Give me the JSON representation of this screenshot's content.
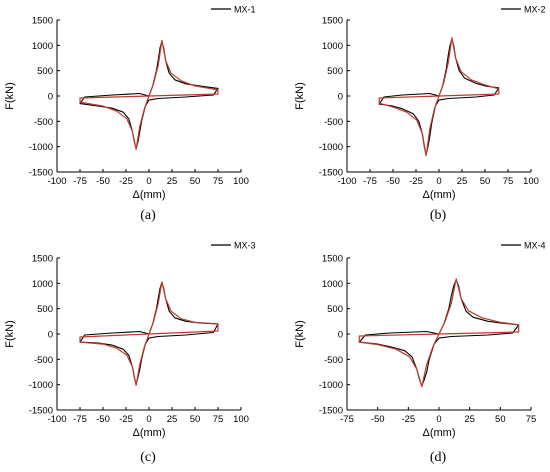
{
  "chart_data": [
    {
      "type": "line",
      "panel_label": "(a)",
      "xlabel": "Δ(mm)",
      "ylabel": "F(kN)",
      "xlim": [
        -100,
        100
      ],
      "ylim": [
        -1500,
        1500
      ],
      "xticks": [
        -100,
        -75,
        -50,
        -25,
        0,
        25,
        50,
        75,
        100
      ],
      "yticks": [
        -1500,
        -1000,
        -500,
        0,
        500,
        1000,
        1500
      ],
      "legend": "top-right",
      "series": [
        {
          "name": "MX-1",
          "color": "#000000",
          "role": "hysteresis",
          "x": [
            0,
            4,
            8,
            10,
            12,
            14,
            16,
            18,
            22,
            28,
            40,
            55,
            75,
            70,
            40,
            10,
            0,
            -4,
            -8,
            -10,
            -12,
            -14,
            -16,
            -18,
            -22,
            -28,
            -40,
            -55,
            -75,
            -70,
            -40,
            -10,
            0
          ],
          "y": [
            0,
            200,
            500,
            700,
            950,
            1080,
            950,
            700,
            450,
            320,
            240,
            200,
            150,
            20,
            -20,
            -50,
            -80,
            -200,
            -500,
            -700,
            -900,
            -1040,
            -900,
            -700,
            -450,
            -320,
            -240,
            -200,
            -150,
            -20,
            20,
            50,
            0
          ]
        },
        {
          "name": "",
          "color": "#c0392b",
          "role": "skeleton",
          "x": [
            0,
            5,
            10,
            14,
            18,
            24,
            35,
            50,
            75,
            75,
            0,
            -75,
            -75,
            -50,
            -35,
            -24,
            -18,
            -14,
            -10,
            -5,
            0
          ],
          "y": [
            0,
            250,
            600,
            1100,
            700,
            450,
            300,
            200,
            120,
            40,
            0,
            -40,
            -120,
            -200,
            -300,
            -450,
            -700,
            -1050,
            -600,
            -250,
            0
          ]
        }
      ]
    },
    {
      "type": "line",
      "panel_label": "(b)",
      "xlabel": "Δ(mm)",
      "ylabel": "F(kN)",
      "xlim": [
        -100,
        100
      ],
      "ylim": [
        -1500,
        1500
      ],
      "xticks": [
        -100,
        -75,
        -50,
        -25,
        0,
        25,
        50,
        75,
        100
      ],
      "yticks": [
        -1500,
        -1000,
        -500,
        0,
        500,
        1000,
        1500
      ],
      "legend": "top-right",
      "series": [
        {
          "name": "MX-2",
          "color": "#000000",
          "role": "hysteresis",
          "x": [
            0,
            4,
            8,
            10,
            12,
            14,
            16,
            18,
            22,
            28,
            40,
            50,
            65,
            60,
            40,
            10,
            0,
            -4,
            -8,
            -10,
            -12,
            -14,
            -16,
            -18,
            -22,
            -28,
            -40,
            -50,
            -65,
            -60,
            -40,
            -10,
            0
          ],
          "y": [
            0,
            200,
            550,
            800,
            1000,
            1120,
            1000,
            750,
            500,
            350,
            250,
            200,
            160,
            20,
            -20,
            -50,
            -80,
            -200,
            -550,
            -800,
            -1000,
            -1150,
            -1000,
            -750,
            -500,
            -350,
            -250,
            -200,
            -160,
            -20,
            20,
            50,
            0
          ]
        },
        {
          "name": "",
          "color": "#c0392b",
          "role": "skeleton",
          "x": [
            0,
            5,
            10,
            14,
            18,
            24,
            35,
            50,
            65,
            65,
            0,
            -65,
            -65,
            -50,
            -35,
            -24,
            -18,
            -14,
            -10,
            -5,
            0
          ],
          "y": [
            0,
            250,
            650,
            1150,
            750,
            480,
            320,
            220,
            140,
            40,
            0,
            -40,
            -140,
            -220,
            -320,
            -480,
            -750,
            -1180,
            -650,
            -250,
            0
          ]
        }
      ]
    },
    {
      "type": "line",
      "panel_label": "(c)",
      "xlabel": "Δ(mm)",
      "ylabel": "F(kN)",
      "xlim": [
        -100,
        100
      ],
      "ylim": [
        -1500,
        1500
      ],
      "xticks": [
        -100,
        -75,
        -50,
        -25,
        0,
        25,
        50,
        75,
        100
      ],
      "yticks": [
        -1500,
        -1000,
        -500,
        0,
        500,
        1000,
        1500
      ],
      "legend": "top-right",
      "series": [
        {
          "name": "MX-3",
          "color": "#000000",
          "role": "hysteresis",
          "x": [
            0,
            4,
            8,
            10,
            12,
            14,
            16,
            18,
            22,
            28,
            40,
            55,
            75,
            70,
            40,
            10,
            0,
            -4,
            -8,
            -10,
            -12,
            -14,
            -16,
            -18,
            -22,
            -28,
            -40,
            -55,
            -75,
            -70,
            -40,
            -10,
            0
          ],
          "y": [
            0,
            200,
            500,
            700,
            900,
            1020,
            900,
            700,
            450,
            320,
            250,
            220,
            200,
            30,
            -20,
            -50,
            -80,
            -200,
            -500,
            -700,
            -850,
            -1000,
            -850,
            -650,
            -420,
            -300,
            -220,
            -180,
            -160,
            -20,
            20,
            50,
            0
          ]
        },
        {
          "name": "",
          "color": "#c0392b",
          "role": "skeleton",
          "x": [
            0,
            5,
            10,
            14,
            18,
            24,
            35,
            50,
            75,
            75,
            0,
            -75,
            -75,
            -50,
            -35,
            -24,
            -18,
            -14,
            -10,
            -5,
            0
          ],
          "y": [
            0,
            250,
            600,
            1030,
            700,
            450,
            300,
            230,
            200,
            60,
            0,
            -60,
            -160,
            -200,
            -280,
            -420,
            -650,
            -1010,
            -600,
            -250,
            0
          ]
        }
      ]
    },
    {
      "type": "line",
      "panel_label": "(d)",
      "xlabel": "Δ(mm)",
      "ylabel": "F(kN)",
      "xlim": [
        -75,
        75
      ],
      "ylim": [
        -1500,
        1500
      ],
      "xticks": [
        -75,
        -50,
        -25,
        0,
        25,
        50,
        75
      ],
      "yticks": [
        -1500,
        -1000,
        -500,
        0,
        500,
        1000,
        1500
      ],
      "legend": "top-right",
      "series": [
        {
          "name": "MX-4",
          "color": "#000000",
          "role": "hysteresis",
          "x": [
            0,
            4,
            8,
            10,
            12,
            14,
            16,
            18,
            22,
            28,
            40,
            50,
            65,
            60,
            40,
            10,
            0,
            -4,
            -8,
            -10,
            -12,
            -14,
            -16,
            -18,
            -22,
            -28,
            -40,
            -50,
            -65,
            -60,
            -40,
            -10,
            0
          ],
          "y": [
            0,
            200,
            500,
            750,
            950,
            1070,
            950,
            700,
            450,
            330,
            250,
            220,
            180,
            20,
            -20,
            -50,
            -80,
            -200,
            -500,
            -750,
            -900,
            -1020,
            -900,
            -700,
            -450,
            -330,
            -250,
            -200,
            -160,
            -20,
            20,
            50,
            0
          ]
        },
        {
          "name": "",
          "color": "#c0392b",
          "role": "skeleton",
          "x": [
            0,
            5,
            10,
            14,
            18,
            24,
            35,
            50,
            65,
            65,
            0,
            -65,
            -65,
            -50,
            -35,
            -24,
            -18,
            -14,
            -10,
            -5,
            0
          ],
          "y": [
            0,
            250,
            600,
            1090,
            700,
            460,
            320,
            230,
            180,
            40,
            0,
            -40,
            -160,
            -210,
            -300,
            -450,
            -700,
            -1040,
            -600,
            -250,
            0
          ]
        }
      ]
    }
  ]
}
